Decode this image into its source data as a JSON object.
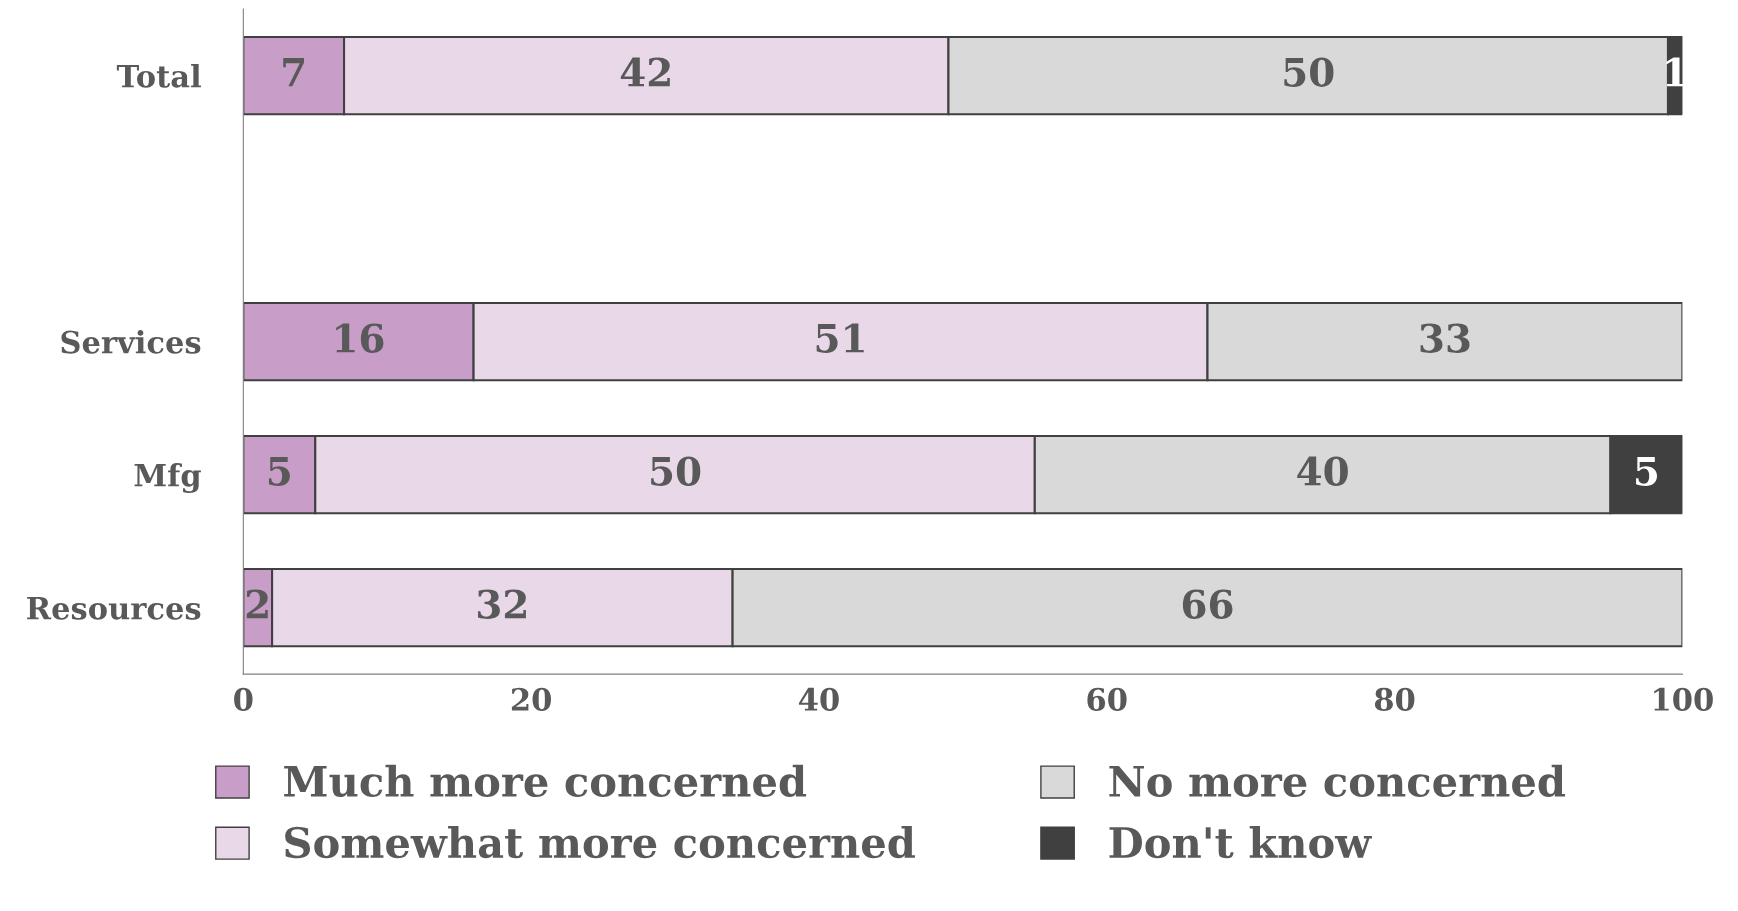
{
  "chart_data": {
    "type": "bar",
    "orientation": "horizontal",
    "stacked": true,
    "categories": [
      "Total",
      null,
      "Services",
      "Mfg",
      "Resources"
    ],
    "series": [
      {
        "name": "Much more concerned",
        "color": "#c89dc8",
        "values": [
          7,
          null,
          16,
          5,
          2
        ]
      },
      {
        "name": "Somewhat more concerned",
        "color": "#e8d8e8",
        "values": [
          42,
          null,
          51,
          50,
          32
        ]
      },
      {
        "name": "No more concerned",
        "color": "#d9d9d9",
        "values": [
          50,
          null,
          33,
          40,
          66
        ]
      },
      {
        "name": "Don't know",
        "color": "#404040",
        "values": [
          1,
          null,
          null,
          5,
          null
        ]
      }
    ],
    "xlim": [
      0,
      100
    ],
    "xticks": [
      0,
      20,
      40,
      60,
      80,
      100
    ],
    "data_labels": true,
    "grid": false,
    "legend": "bottom"
  }
}
